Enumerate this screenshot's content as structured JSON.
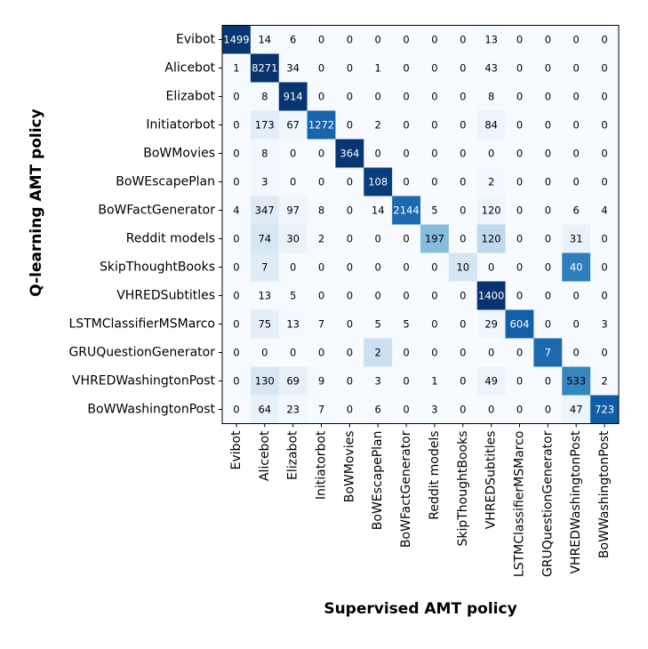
{
  "chart_data": {
    "type": "heatmap",
    "xlabel": "Supervised AMT policy",
    "ylabel": "Q-learning AMT policy",
    "row_labels": [
      "Evibot",
      "Alicebot",
      "Elizabot",
      "Initiatorbot",
      "BoWMovies",
      "BoWEscapePlan",
      "BoWFactGenerator",
      "Reddit models",
      "SkipThoughtBooks",
      "VHREDSubtitles",
      "LSTMClassifierMSMarco",
      "GRUQuestionGenerator",
      "VHREDWashingtonPost",
      "BoWWashingtonPost"
    ],
    "col_labels": [
      "Evibot",
      "Alicebot",
      "Elizabot",
      "Initiatorbot",
      "BoWMovies",
      "BoWEscapePlan",
      "BoWFactGenerator",
      "Reddit models",
      "SkipThoughtBooks",
      "VHREDSubtitles",
      "LSTMClassifierMSMarco",
      "GRUQuestionGenerator",
      "VHREDWashingtonPost",
      "BoWWashingtonPost"
    ],
    "values": [
      [
        1499,
        14,
        6,
        0,
        0,
        0,
        0,
        0,
        0,
        13,
        0,
        0,
        0,
        0
      ],
      [
        1,
        8271,
        34,
        0,
        0,
        1,
        0,
        0,
        0,
        43,
        0,
        0,
        0,
        0
      ],
      [
        0,
        8,
        914,
        0,
        0,
        0,
        0,
        0,
        0,
        8,
        0,
        0,
        0,
        0
      ],
      [
        0,
        173,
        67,
        1272,
        0,
        2,
        0,
        0,
        0,
        84,
        0,
        0,
        0,
        0
      ],
      [
        0,
        8,
        0,
        0,
        364,
        0,
        0,
        0,
        0,
        0,
        0,
        0,
        0,
        0
      ],
      [
        0,
        3,
        0,
        0,
        0,
        108,
        0,
        0,
        0,
        2,
        0,
        0,
        0,
        0
      ],
      [
        4,
        347,
        97,
        8,
        0,
        14,
        2144,
        5,
        0,
        120,
        0,
        0,
        6,
        4
      ],
      [
        0,
        74,
        30,
        2,
        0,
        0,
        0,
        197,
        0,
        120,
        0,
        0,
        31,
        0
      ],
      [
        0,
        7,
        0,
        0,
        0,
        0,
        0,
        0,
        10,
        0,
        0,
        0,
        40,
        0
      ],
      [
        0,
        13,
        5,
        0,
        0,
        0,
        0,
        0,
        0,
        1400,
        0,
        0,
        0,
        0
      ],
      [
        0,
        75,
        13,
        7,
        0,
        5,
        5,
        0,
        0,
        29,
        604,
        0,
        0,
        3
      ],
      [
        0,
        0,
        0,
        0,
        0,
        2,
        0,
        0,
        0,
        0,
        0,
        7,
        0,
        0
      ],
      [
        0,
        130,
        69,
        9,
        0,
        3,
        0,
        1,
        0,
        49,
        0,
        0,
        533,
        2
      ],
      [
        0,
        64,
        23,
        7,
        0,
        6,
        0,
        3,
        0,
        0,
        0,
        0,
        47,
        723
      ]
    ],
    "normalization": "row",
    "colormap": [
      "#f7fbff",
      "#deebf7",
      "#c6dbef",
      "#9ecae1",
      "#6baed6",
      "#4292c6",
      "#2171b5",
      "#08519c",
      "#08306b"
    ],
    "grid": false
  }
}
